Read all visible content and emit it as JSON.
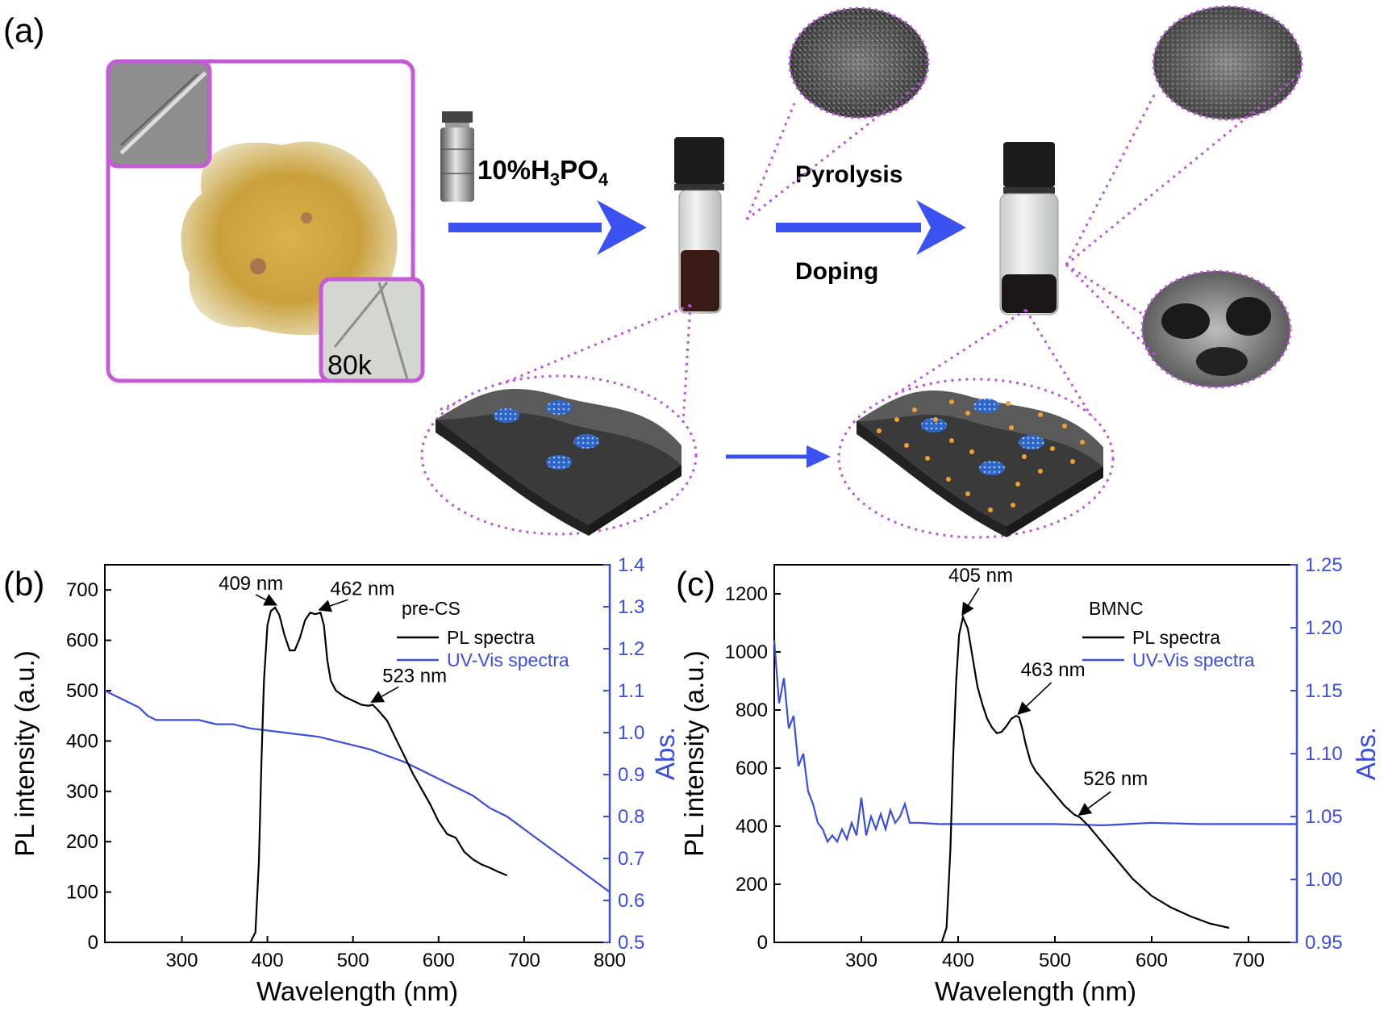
{
  "panel_a": {
    "label": "(a)",
    "scale_label": "80k",
    "reagent": "10%H3PO4",
    "step_top": "Pyrolysis",
    "step_bottom": "Doping"
  },
  "colors": {
    "pl_black": "#000000",
    "uv_blue": "#3a4ee0",
    "arrow_blue": "#3b52f0",
    "frame_purple": "#c45ad6",
    "dotted_purple": "#c050e0",
    "dopant_orange": "#f0a030"
  },
  "chart_data": [
    {
      "type": "line",
      "panel": "(b)",
      "sample": "pre-CS",
      "xlabel": "Wavelength (nm)",
      "ylabel": "PL intensity (a.u.)",
      "y2label": "Abs.",
      "xlim": [
        210,
        800
      ],
      "ylim": [
        0,
        750
      ],
      "y2lim": [
        0.5,
        1.4
      ],
      "xticks": [
        300,
        400,
        500,
        600,
        700,
        800
      ],
      "yticks": [
        0,
        100,
        200,
        300,
        400,
        500,
        600,
        700
      ],
      "y2ticks": [
        0.5,
        0.6,
        0.7,
        0.8,
        0.9,
        1.0,
        1.1,
        1.2,
        1.3,
        1.4
      ],
      "legend": {
        "title": "pre-CS",
        "position": "top-right",
        "entries": [
          "PL spectra",
          "UV-Vis spectra"
        ]
      },
      "series": [
        {
          "name": "PL spectra",
          "axis": "left",
          "x": [
            380,
            386,
            390,
            393,
            396,
            400,
            404,
            409,
            414,
            420,
            426,
            432,
            438,
            444,
            450,
            456,
            462,
            466,
            470,
            474,
            480,
            490,
            500,
            510,
            518,
            523,
            530,
            540,
            550,
            560,
            570,
            580,
            590,
            600,
            610,
            620,
            630,
            640,
            650,
            660,
            670,
            680
          ],
          "y": [
            0,
            20,
            160,
            360,
            520,
            630,
            658,
            665,
            650,
            610,
            580,
            580,
            605,
            640,
            655,
            652,
            655,
            630,
            560,
            520,
            500,
            488,
            480,
            472,
            470,
            472,
            460,
            440,
            405,
            370,
            335,
            305,
            275,
            240,
            215,
            208,
            180,
            165,
            155,
            148,
            140,
            133
          ]
        },
        {
          "name": "UV-Vis spectra",
          "axis": "right",
          "x": [
            210,
            220,
            230,
            240,
            250,
            260,
            270,
            280,
            300,
            320,
            340,
            360,
            380,
            400,
            420,
            440,
            460,
            480,
            500,
            520,
            540,
            560,
            580,
            600,
            620,
            640,
            660,
            680,
            700,
            720,
            740,
            760,
            780,
            800
          ],
          "y": [
            1.1,
            1.09,
            1.08,
            1.07,
            1.06,
            1.04,
            1.03,
            1.03,
            1.03,
            1.03,
            1.02,
            1.02,
            1.01,
            1.005,
            1.0,
            0.995,
            0.99,
            0.98,
            0.97,
            0.96,
            0.945,
            0.93,
            0.91,
            0.89,
            0.87,
            0.85,
            0.82,
            0.8,
            0.77,
            0.74,
            0.71,
            0.68,
            0.65,
            0.62
          ]
        }
      ],
      "annotations": [
        {
          "text": "409 nm",
          "x": 409,
          "y": 665
        },
        {
          "text": "462 nm",
          "x": 462,
          "y": 655
        },
        {
          "text": "523 nm",
          "x": 523,
          "y": 472
        }
      ]
    },
    {
      "type": "line",
      "panel": "(c)",
      "sample": "BMNC",
      "xlabel": "Wavelength (nm)",
      "ylabel": "PL intensity (a.u.)",
      "y2label": "Abs.",
      "xlim": [
        210,
        750
      ],
      "ylim": [
        0,
        1300
      ],
      "y2lim": [
        0.95,
        1.25
      ],
      "xticks": [
        300,
        400,
        500,
        600,
        700
      ],
      "yticks": [
        0,
        200,
        400,
        600,
        800,
        1000,
        1200
      ],
      "y2ticks": [
        0.95,
        1.0,
        1.05,
        1.1,
        1.15,
        1.2,
        1.25
      ],
      "legend": {
        "title": "BMNC",
        "position": "top-right",
        "entries": [
          "PL spectra",
          "UV-Vis spectra"
        ]
      },
      "series": [
        {
          "name": "PL spectra",
          "axis": "left",
          "x": [
            383,
            388,
            392,
            395,
            398,
            401,
            405,
            410,
            415,
            420,
            425,
            430,
            435,
            440,
            445,
            450,
            455,
            460,
            463,
            466,
            470,
            475,
            480,
            490,
            500,
            510,
            520,
            526,
            535,
            545,
            560,
            580,
            600,
            620,
            640,
            660,
            680
          ],
          "y": [
            0,
            50,
            320,
            650,
            900,
            1060,
            1120,
            1080,
            980,
            880,
            820,
            770,
            740,
            720,
            725,
            745,
            770,
            780,
            775,
            740,
            680,
            620,
            590,
            550,
            510,
            470,
            440,
            430,
            400,
            360,
            300,
            220,
            160,
            120,
            90,
            65,
            50
          ]
        },
        {
          "name": "UV-Vis spectra",
          "axis": "right",
          "x": [
            210,
            215,
            220,
            225,
            230,
            235,
            240,
            245,
            250,
            255,
            260,
            265,
            270,
            275,
            280,
            285,
            290,
            295,
            300,
            305,
            310,
            315,
            320,
            325,
            330,
            335,
            340,
            345,
            350,
            360,
            380,
            400,
            450,
            500,
            550,
            600,
            650,
            700,
            750
          ],
          "y": [
            1.19,
            1.14,
            1.16,
            1.12,
            1.13,
            1.09,
            1.1,
            1.07,
            1.06,
            1.045,
            1.04,
            1.03,
            1.035,
            1.03,
            1.04,
            1.032,
            1.045,
            1.035,
            1.065,
            1.035,
            1.05,
            1.04,
            1.052,
            1.04,
            1.055,
            1.045,
            1.05,
            1.06,
            1.045,
            1.045,
            1.044,
            1.044,
            1.044,
            1.044,
            1.043,
            1.045,
            1.044,
            1.044,
            1.044
          ]
        }
      ],
      "annotations": [
        {
          "text": "405 nm",
          "x": 405,
          "y": 1120
        },
        {
          "text": "463 nm",
          "x": 463,
          "y": 778
        },
        {
          "text": "526 nm",
          "x": 526,
          "y": 430
        }
      ]
    }
  ]
}
